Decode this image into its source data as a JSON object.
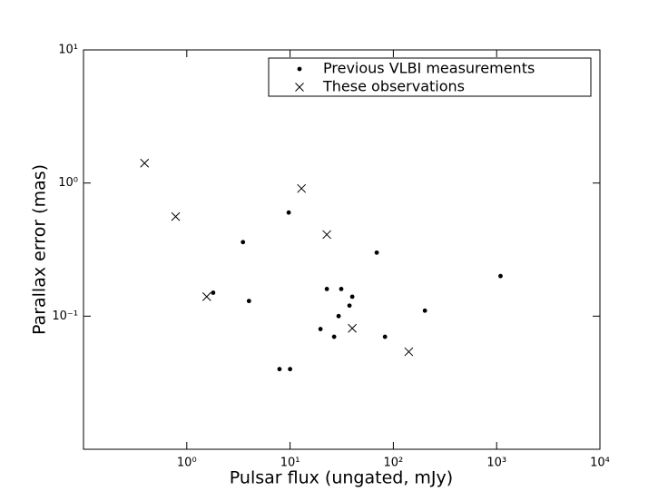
{
  "chart_data": {
    "type": "scatter",
    "xlabel": "Pulsar flux (ungated, mJy)",
    "ylabel": "Parallax error (mas)",
    "xscale": "log",
    "yscale": "log",
    "xlim": [
      0.1,
      10000
    ],
    "ylim": [
      0.01,
      10
    ],
    "xticks": [
      {
        "value": 1,
        "label": "10⁰"
      },
      {
        "value": 10,
        "label": "10¹"
      },
      {
        "value": 100,
        "label": "10²"
      },
      {
        "value": 1000,
        "label": "10³"
      },
      {
        "value": 10000,
        "label": "10⁴"
      }
    ],
    "yticks": [
      {
        "value": 0.1,
        "label": "10⁻¹"
      },
      {
        "value": 1,
        "label": "10⁰"
      },
      {
        "value": 10,
        "label": "10¹"
      }
    ],
    "legend": "upper right",
    "series": [
      {
        "name": "Previous VLBI measurements",
        "color": "#000000",
        "marker": "o",
        "x": [
          1.8,
          3.5,
          4.0,
          9.7,
          7.9,
          10,
          19.7,
          22.7,
          26.7,
          29.5,
          31.3,
          37.6,
          40,
          69,
          83,
          202,
          1090
        ],
        "values": [
          0.15,
          0.36,
          0.13,
          0.6,
          0.04,
          0.04,
          0.08,
          0.16,
          0.07,
          0.1,
          0.16,
          0.12,
          0.14,
          0.3,
          0.07,
          0.11,
          0.2
        ]
      },
      {
        "name": "These observations",
        "color": "#000000",
        "marker": "x",
        "x": [
          0.39,
          0.78,
          1.56,
          12.9,
          22.7,
          40,
          141
        ],
        "values": [
          1.41,
          0.56,
          0.14,
          0.91,
          0.41,
          0.081,
          0.054
        ]
      }
    ]
  }
}
